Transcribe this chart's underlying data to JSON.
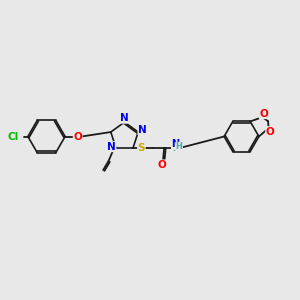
{
  "background_color": "#e8e8e8",
  "bond_color": "#1a1a1a",
  "atom_colors": {
    "N": "#0000ee",
    "O": "#ff0000",
    "S": "#ccaa00",
    "Cl": "#00bb00",
    "H": "#44aaaa",
    "C": "#1a1a1a"
  },
  "figsize": [
    3.0,
    3.0
  ],
  "dpi": 100
}
